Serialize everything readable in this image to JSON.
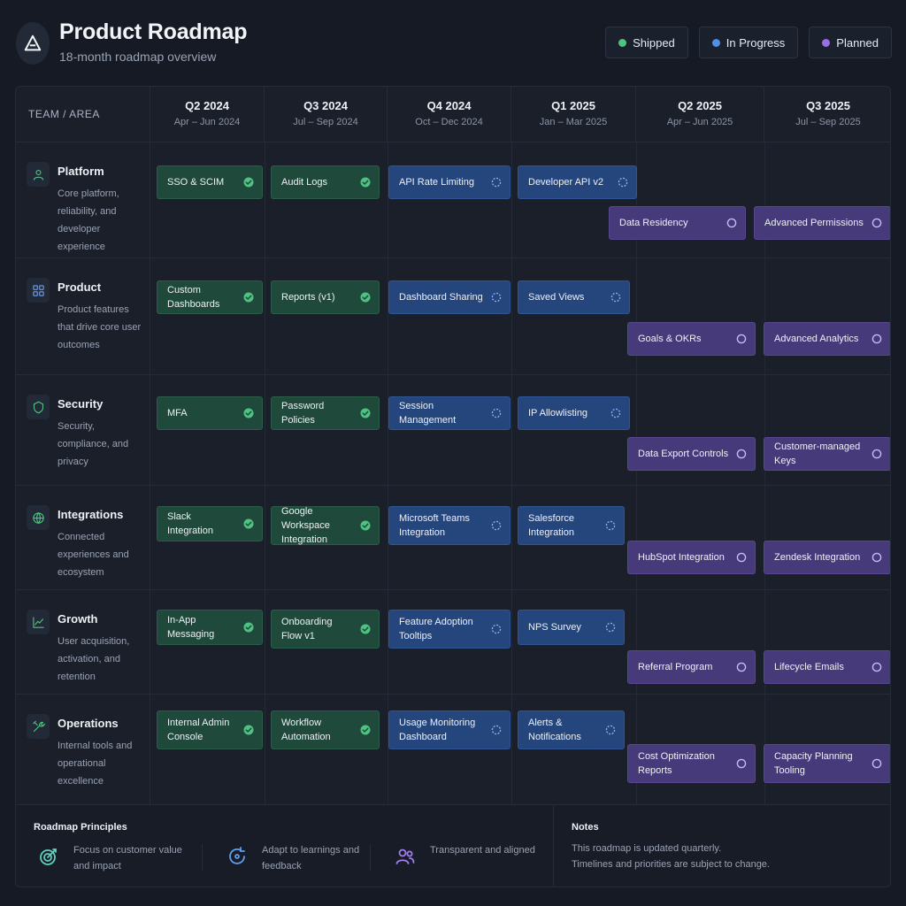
{
  "header": {
    "title": "Product Roadmap",
    "subtitle": "18-month roadmap overview",
    "logo_icon": "triangle-logo-icon"
  },
  "legend": [
    {
      "label": "Shipped",
      "color": "#4fc283"
    },
    {
      "label": "In Progress",
      "color": "#4f8fe8"
    },
    {
      "label": "Planned",
      "color": "#9a6ee8"
    }
  ],
  "colors": {
    "shipped": "#1f4a3b",
    "in_progress": "#24467d",
    "planned": "#473a7a",
    "check": "#4fc283",
    "progress": "#8fb4f5",
    "planned_ring": "#c9b9f5"
  },
  "grid": {
    "corner_label": "TEAM / AREA",
    "quarters": [
      {
        "label": "Q2 2024",
        "range": "Apr – Jun 2024"
      },
      {
        "label": "Q3 2024",
        "range": "Jul – Sep 2024"
      },
      {
        "label": "Q4 2024",
        "range": "Oct – Dec 2024"
      },
      {
        "label": "Q1 2025",
        "range": "Jan – Mar 2025"
      },
      {
        "label": "Q2 2025",
        "range": "Apr – Jun 2025"
      },
      {
        "label": "Q3 2025",
        "range": "Jul – Sep 2025"
      }
    ]
  },
  "teams": [
    {
      "name": "Platform",
      "icon": "user-icon",
      "description": "Core platform, reliability, and developer experience",
      "items": [
        {
          "label": "SSO & SCIM",
          "status": "shipped"
        },
        {
          "label": "Audit Logs",
          "status": "shipped"
        },
        {
          "label": "API Rate Limiting",
          "status": "in_progress"
        },
        {
          "label": "Developer API v2",
          "status": "in_progress"
        },
        {
          "label": "Data Residency",
          "status": "planned"
        },
        {
          "label": "Advanced Permissions",
          "status": "planned"
        }
      ]
    },
    {
      "name": "Product",
      "icon": "grid-icon",
      "description": "Product features that drive core user outcomes",
      "items": [
        {
          "label": "Custom Dashboards",
          "status": "shipped"
        },
        {
          "label": "Reports (v1)",
          "status": "shipped"
        },
        {
          "label": "Dashboard Sharing",
          "status": "in_progress"
        },
        {
          "label": "Saved Views",
          "status": "in_progress"
        },
        {
          "label": "Goals & OKRs",
          "status": "planned"
        },
        {
          "label": "Advanced Analytics",
          "status": "planned"
        }
      ]
    },
    {
      "name": "Security",
      "icon": "shield-icon",
      "description": "Security, compliance, and privacy",
      "items": [
        {
          "label": "MFA",
          "status": "shipped"
        },
        {
          "label": "Password Policies",
          "status": "shipped"
        },
        {
          "label": "Session Management",
          "status": "in_progress"
        },
        {
          "label": "IP Allowlisting",
          "status": "in_progress"
        },
        {
          "label": "Data Export Controls",
          "status": "planned"
        },
        {
          "label": "Customer-managed Keys",
          "status": "planned"
        }
      ]
    },
    {
      "name": "Integrations",
      "icon": "globe-icon",
      "description": "Connected experiences and ecosystem",
      "items": [
        {
          "label": "Slack Integration",
          "status": "shipped"
        },
        {
          "label": "Google Workspace Integration",
          "status": "shipped"
        },
        {
          "label": "Microsoft Teams Integration",
          "status": "in_progress"
        },
        {
          "label": "Salesforce Integration",
          "status": "in_progress"
        },
        {
          "label": "HubSpot Integration",
          "status": "planned"
        },
        {
          "label": "Zendesk Integration",
          "status": "planned"
        }
      ]
    },
    {
      "name": "Growth",
      "icon": "chart-icon",
      "description": "User acquisition, activation, and retention",
      "items": [
        {
          "label": "In-App Messaging",
          "status": "shipped"
        },
        {
          "label": "Onboarding Flow v1",
          "status": "shipped"
        },
        {
          "label": "Feature Adoption Tooltips",
          "status": "in_progress"
        },
        {
          "label": "NPS Survey",
          "status": "in_progress"
        },
        {
          "label": "Referral Program",
          "status": "planned"
        },
        {
          "label": "Lifecycle Emails",
          "status": "planned"
        }
      ]
    },
    {
      "name": "Operations",
      "icon": "tools-icon",
      "description": "Internal tools and operational excellence",
      "items": [
        {
          "label": "Internal Admin Console",
          "status": "shipped"
        },
        {
          "label": "Workflow Automation",
          "status": "shipped"
        },
        {
          "label": "Usage Monitoring Dashboard",
          "status": "in_progress"
        },
        {
          "label": "Alerts & Notifications",
          "status": "in_progress"
        },
        {
          "label": "Cost Optimization Reports",
          "status": "planned"
        },
        {
          "label": "Capacity Planning Tooling",
          "status": "planned"
        }
      ]
    }
  ],
  "footer": {
    "principles_title": "Roadmap Principles",
    "principles": [
      {
        "text": "Focus on customer value and impact",
        "icon": "target-icon"
      },
      {
        "text": "Adapt to learnings and feedback",
        "icon": "refresh-icon"
      },
      {
        "text": "Transparent and aligned",
        "icon": "people-icon"
      }
    ],
    "notes_title": "Notes",
    "notes": [
      "This roadmap is updated quarterly.",
      "Timelines and priorities are subject to change."
    ]
  }
}
